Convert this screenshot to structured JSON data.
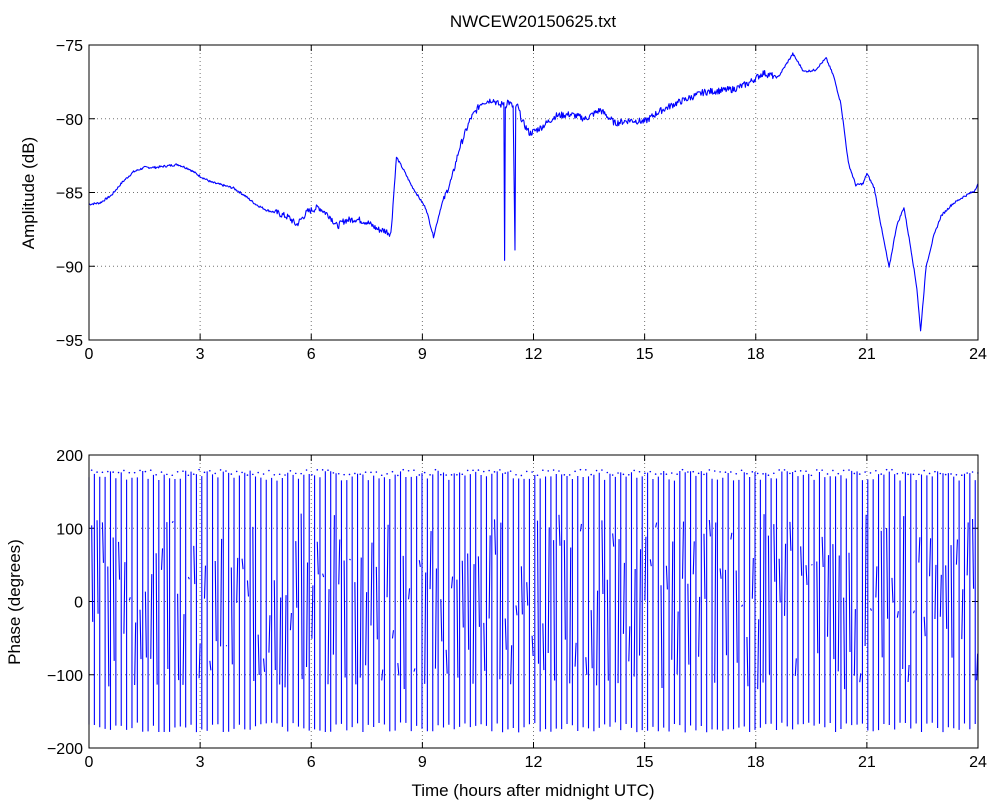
{
  "chart_data": [
    {
      "type": "line",
      "title": "NWCEW20150625.txt",
      "xlabel": "",
      "ylabel": "Amplitude (dB)",
      "xlim": [
        0,
        24
      ],
      "ylim": [
        -95,
        -75
      ],
      "xticks": [
        0,
        3,
        6,
        9,
        12,
        15,
        18,
        21,
        24
      ],
      "yticks": [
        -95,
        -90,
        -85,
        -80,
        -75
      ],
      "grid": true,
      "color": "#0000ff",
      "series": [
        {
          "x": [
            0,
            0.3,
            0.6,
            0.9,
            1.2,
            1.5,
            1.8,
            2.1,
            2.4,
            2.7,
            3.0,
            3.3,
            3.6,
            3.9,
            4.2,
            4.5,
            4.8,
            5.1,
            5.4,
            5.6,
            5.9,
            6.2,
            6.5,
            6.7,
            6.9,
            7.2,
            7.5,
            7.8,
            8.0,
            8.15,
            8.3,
            8.5,
            8.7,
            8.9,
            9.1,
            9.3,
            9.5,
            9.8,
            10.0,
            10.3,
            10.6,
            10.9,
            11.1,
            11.2,
            11.22,
            11.24,
            11.3,
            11.45,
            11.5,
            11.52,
            11.55,
            11.7,
            11.9,
            12.2,
            12.6,
            13.0,
            13.4,
            13.8,
            14.2,
            14.6,
            15.0,
            15.4,
            15.8,
            16.2,
            16.6,
            17.0,
            17.4,
            17.8,
            18.2,
            18.6,
            19.0,
            19.3,
            19.6,
            19.9,
            20.1,
            20.3,
            20.5,
            20.7,
            20.9,
            21.0,
            21.2,
            21.4,
            21.6,
            21.8,
            22.0,
            22.2,
            22.35,
            22.45,
            22.6,
            22.8,
            23.0,
            23.3,
            23.6,
            23.9,
            24.0
          ],
          "values": [
            -85.8,
            -85.7,
            -85.2,
            -84.3,
            -83.6,
            -83.3,
            -83.3,
            -83.2,
            -83.1,
            -83.4,
            -83.9,
            -84.3,
            -84.5,
            -84.7,
            -85.2,
            -85.8,
            -86.2,
            -86.4,
            -86.7,
            -87.2,
            -86.3,
            -86.0,
            -86.6,
            -87.3,
            -86.9,
            -86.8,
            -87.0,
            -87.5,
            -87.6,
            -87.8,
            -82.6,
            -83.5,
            -84.5,
            -85.3,
            -86.1,
            -88.0,
            -86.0,
            -84.0,
            -82.0,
            -80.0,
            -78.9,
            -78.7,
            -79.1,
            -78.9,
            -89.6,
            -79.2,
            -78.8,
            -79.2,
            -88.9,
            -79.4,
            -79.0,
            -80.2,
            -81.0,
            -80.6,
            -79.8,
            -79.7,
            -80.0,
            -79.4,
            -80.3,
            -80.1,
            -80.2,
            -79.5,
            -79.0,
            -78.6,
            -78.2,
            -78.1,
            -78.0,
            -77.6,
            -76.9,
            -77.2,
            -75.6,
            -76.8,
            -76.7,
            -75.9,
            -77.1,
            -79.0,
            -83.0,
            -84.5,
            -84.4,
            -83.7,
            -84.7,
            -87.5,
            -90.1,
            -87.3,
            -86.0,
            -89.0,
            -91.5,
            -94.4,
            -90.0,
            -88.0,
            -86.6,
            -85.8,
            -85.3,
            -84.9,
            -84.4
          ]
        }
      ]
    },
    {
      "type": "line",
      "title": "",
      "xlabel": "Time (hours after midnight UTC)",
      "ylabel": "Phase (degrees)",
      "xlim": [
        0,
        24
      ],
      "ylim": [
        -200,
        200
      ],
      "xticks": [
        0,
        3,
        6,
        9,
        12,
        15,
        18,
        21,
        24
      ],
      "yticks": [
        -200,
        -100,
        0,
        100,
        200
      ],
      "grid": true,
      "color": "#0000ff",
      "series": [
        {
          "wrapped_phase": true,
          "period_hours": 0.145,
          "range": [
            -180,
            180
          ]
        }
      ]
    }
  ]
}
